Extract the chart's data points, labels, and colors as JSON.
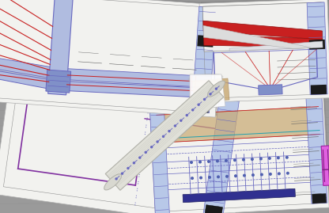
{
  "bg_color": "#9a9a9a",
  "paper_white": "#f2f2ef",
  "paper_shadow": "#888888",
  "blue_line": "#6868c0",
  "purple_line": "#8030a0",
  "red_line": "#c82020",
  "dark_blue": "#303090",
  "mid_blue": "#5060b0",
  "fill_blue_light": "#b0bce0",
  "fill_blue_mid": "#8090c8",
  "fill_gray": "#c8ccd0",
  "fill_gray2": "#d4d8dc",
  "fill_tan": "#c8a870",
  "cyan_line": "#20a0b0",
  "pink_box": "#e080e0",
  "text_dark": "#404040",
  "scroll_color": "#e0e0d8",
  "scroll_edge": "#b0b0a8",
  "title_block_blue": "#b8c8e8"
}
